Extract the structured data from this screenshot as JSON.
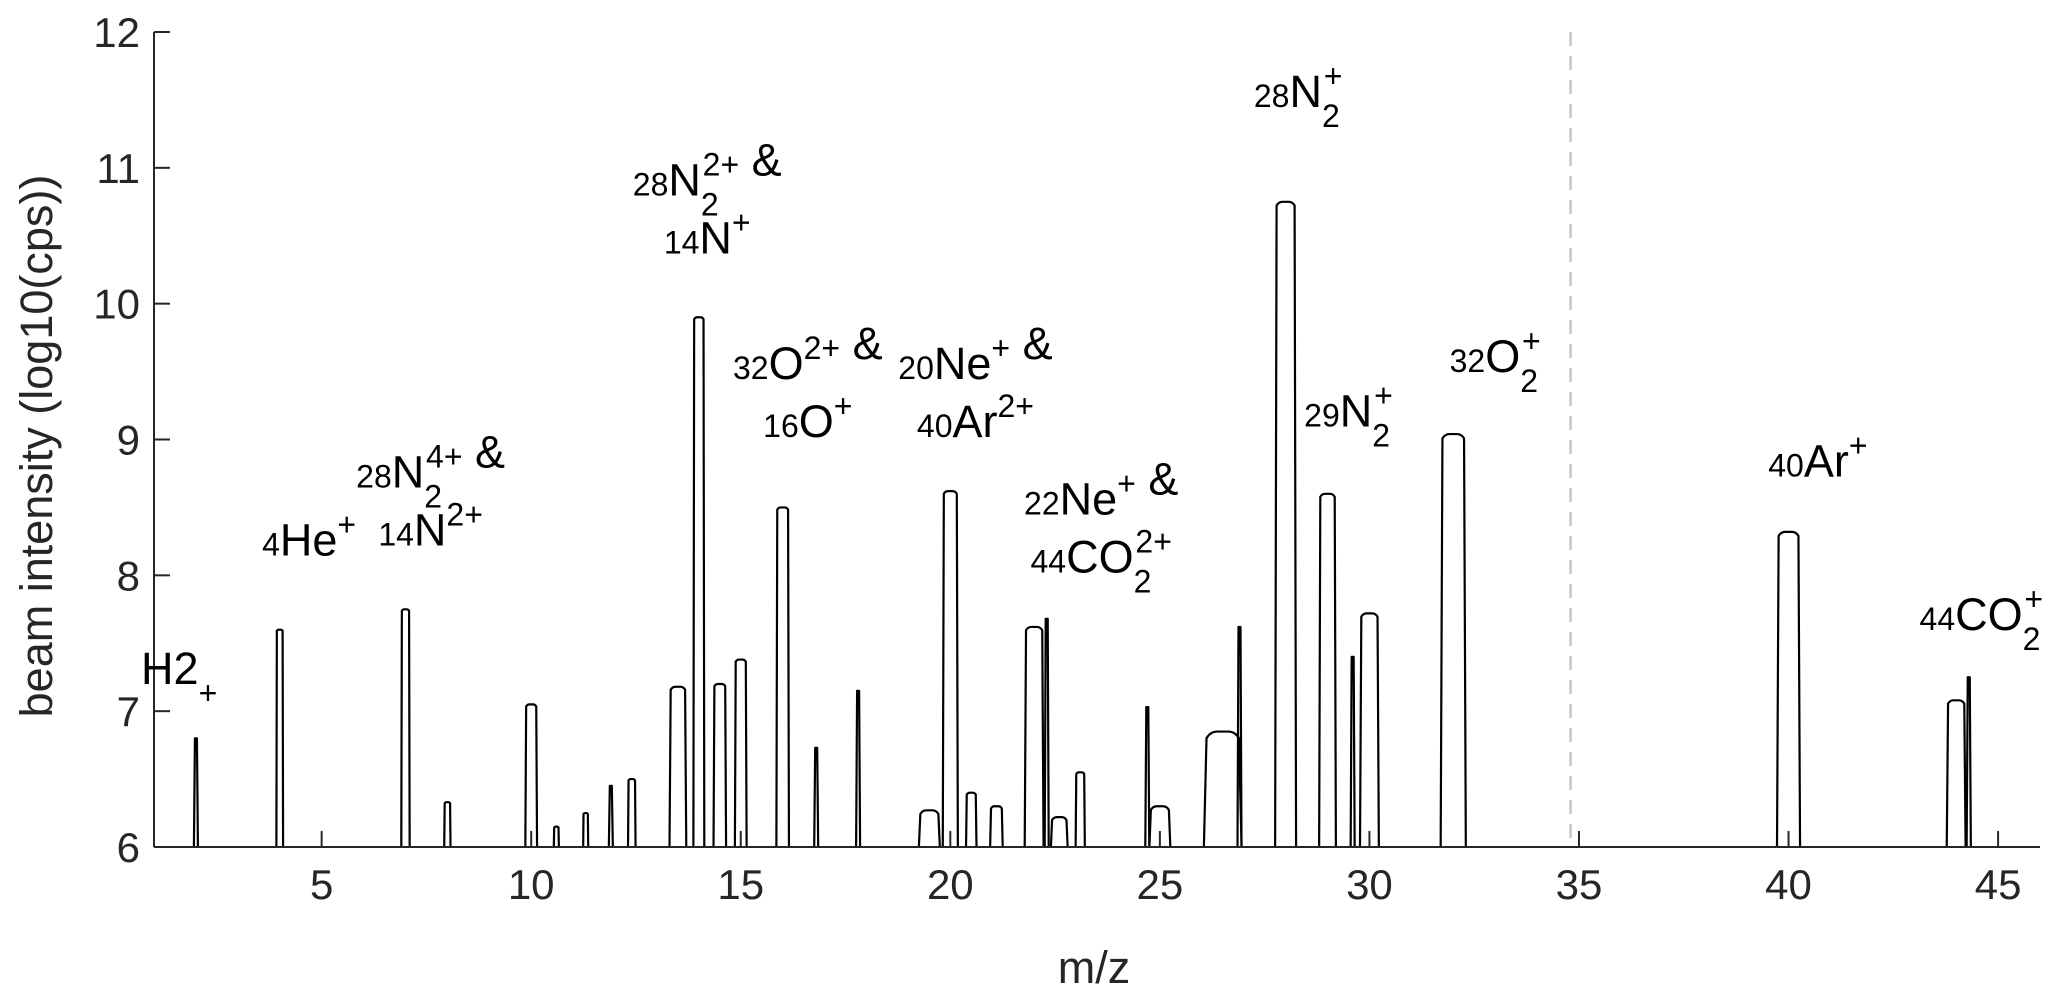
{
  "chart_data": {
    "type": "line",
    "xlabel": "m/z",
    "ylabel": "beam intensity (log10(cps))",
    "xlim": [
      1,
      46
    ],
    "ylim": [
      6,
      12
    ],
    "xticks": [
      5,
      10,
      15,
      20,
      25,
      30,
      35,
      40,
      45
    ],
    "yticks": [
      6,
      7,
      8,
      9,
      10,
      11,
      12
    ],
    "grid": false,
    "reference_line": {
      "x": 34.8,
      "style": "dashed",
      "color": "#c8c8c8"
    },
    "line_color": "#000000",
    "peaks": [
      {
        "x": 2.0,
        "y": 6.8,
        "width": 0.04,
        "shape": "spike"
      },
      {
        "x": 4.0,
        "y": 7.6,
        "width": 0.16,
        "shape": "flat"
      },
      {
        "x": 7.0,
        "y": 7.75,
        "width": 0.2,
        "shape": "flat"
      },
      {
        "x": 8.0,
        "y": 6.33,
        "width": 0.15,
        "shape": "flat"
      },
      {
        "x": 10.0,
        "y": 7.05,
        "width": 0.28,
        "shape": "flat"
      },
      {
        "x": 10.6,
        "y": 6.15,
        "width": 0.12,
        "shape": "flat"
      },
      {
        "x": 11.3,
        "y": 6.25,
        "width": 0.12,
        "shape": "flat"
      },
      {
        "x": 11.9,
        "y": 6.45,
        "width": 0.06,
        "shape": "spike"
      },
      {
        "x": 12.4,
        "y": 6.5,
        "width": 0.18,
        "shape": "flat"
      },
      {
        "x": 13.5,
        "y": 7.18,
        "width": 0.4,
        "shape": "flat"
      },
      {
        "x": 14.0,
        "y": 9.9,
        "width": 0.26,
        "shape": "flat"
      },
      {
        "x": 14.5,
        "y": 7.2,
        "width": 0.3,
        "shape": "flat"
      },
      {
        "x": 15.0,
        "y": 7.38,
        "width": 0.28,
        "shape": "flat"
      },
      {
        "x": 16.0,
        "y": 8.5,
        "width": 0.3,
        "shape": "flat"
      },
      {
        "x": 16.8,
        "y": 6.73,
        "width": 0.04,
        "shape": "spike"
      },
      {
        "x": 17.8,
        "y": 7.15,
        "width": 0.04,
        "shape": "spike"
      },
      {
        "x": 19.5,
        "y": 6.27,
        "width": 0.5,
        "shape": "flat"
      },
      {
        "x": 20.0,
        "y": 8.62,
        "width": 0.36,
        "shape": "flat"
      },
      {
        "x": 20.5,
        "y": 6.4,
        "width": 0.25,
        "shape": "flat"
      },
      {
        "x": 21.1,
        "y": 6.3,
        "width": 0.3,
        "shape": "flat"
      },
      {
        "x": 22.0,
        "y": 7.62,
        "width": 0.45,
        "shape": "flat"
      },
      {
        "x": 22.3,
        "y": 7.68,
        "width": 0.06,
        "shape": "spike"
      },
      {
        "x": 22.6,
        "y": 6.22,
        "width": 0.4,
        "shape": "flat"
      },
      {
        "x": 23.1,
        "y": 6.55,
        "width": 0.22,
        "shape": "flat"
      },
      {
        "x": 24.7,
        "y": 7.03,
        "width": 0.05,
        "shape": "spike"
      },
      {
        "x": 25.0,
        "y": 6.3,
        "width": 0.5,
        "shape": "flat"
      },
      {
        "x": 26.5,
        "y": 6.85,
        "width": 0.9,
        "shape": "flat"
      },
      {
        "x": 26.9,
        "y": 7.62,
        "width": 0.05,
        "shape": "spike"
      },
      {
        "x": 28.0,
        "y": 10.75,
        "width": 0.5,
        "shape": "flat"
      },
      {
        "x": 29.0,
        "y": 8.6,
        "width": 0.4,
        "shape": "flat"
      },
      {
        "x": 29.6,
        "y": 7.4,
        "width": 0.06,
        "shape": "spike"
      },
      {
        "x": 30.0,
        "y": 7.72,
        "width": 0.45,
        "shape": "flat"
      },
      {
        "x": 32.0,
        "y": 9.04,
        "width": 0.6,
        "shape": "flat"
      },
      {
        "x": 40.0,
        "y": 8.32,
        "width": 0.55,
        "shape": "flat"
      },
      {
        "x": 44.0,
        "y": 7.08,
        "width": 0.45,
        "shape": "flat"
      },
      {
        "x": 44.3,
        "y": 7.25,
        "width": 0.1,
        "shape": "spike"
      }
    ],
    "annotations": [
      {
        "x": 1.6,
        "y": 7.2,
        "lines": [
          [
            {
              "t": "H"
            },
            {
              "t": "2",
              "sub": "+"
            }
          ]
        ]
      },
      {
        "x": 4.7,
        "y": 8.0,
        "lines": [
          [
            {
              "sup": "4"
            },
            {
              "t": "He"
            },
            {
              "sup": "+"
            }
          ]
        ]
      },
      {
        "x": 7.6,
        "y": 8.5,
        "lines": [
          [
            {
              "sup": "28"
            },
            {
              "t": "N"
            },
            {
              "sup": "4+",
              "sub": "2"
            },
            {
              "t": " &"
            }
          ],
          [
            {
              "sup": "14"
            },
            {
              "t": "N"
            },
            {
              "sup": "2+"
            }
          ]
        ]
      },
      {
        "x": 14.2,
        "y": 10.65,
        "lines": [
          [
            {
              "sup": "28"
            },
            {
              "t": "N"
            },
            {
              "sup": "2+",
              "sub": "2"
            },
            {
              "t": " &"
            }
          ],
          [
            {
              "sup": "14"
            },
            {
              "t": "N"
            },
            {
              "sup": "+"
            }
          ]
        ]
      },
      {
        "x": 16.6,
        "y": 9.3,
        "lines": [
          [
            {
              "sup": "32"
            },
            {
              "t": "O"
            },
            {
              "sup": "2+"
            },
            {
              "t": " &"
            }
          ],
          [
            {
              "sup": "16"
            },
            {
              "t": "O"
            },
            {
              "sup": "+"
            }
          ]
        ]
      },
      {
        "x": 20.6,
        "y": 9.3,
        "lines": [
          [
            {
              "sup": "20"
            },
            {
              "t": "Ne"
            },
            {
              "sup": "+"
            },
            {
              "t": " &"
            }
          ],
          [
            {
              "sup": "40"
            },
            {
              "t": "Ar"
            },
            {
              "sup": "2+"
            }
          ]
        ]
      },
      {
        "x": 23.6,
        "y": 8.3,
        "lines": [
          [
            {
              "sup": "22"
            },
            {
              "t": "Ne"
            },
            {
              "sup": "+"
            },
            {
              "t": " &"
            }
          ],
          [
            {
              "sup": "44"
            },
            {
              "t": "CO"
            },
            {
              "sup": "2+",
              "sub": "2"
            }
          ]
        ]
      },
      {
        "x": 28.3,
        "y": 11.3,
        "lines": [
          [
            {
              "sup": "28"
            },
            {
              "t": "N"
            },
            {
              "sup": "+",
              "sub": "2"
            }
          ]
        ]
      },
      {
        "x": 29.5,
        "y": 8.95,
        "lines": [
          [
            {
              "sup": "29"
            },
            {
              "t": "N"
            },
            {
              "sup": "+",
              "sub": "2"
            }
          ]
        ]
      },
      {
        "x": 33.0,
        "y": 9.35,
        "lines": [
          [
            {
              "sup": "32"
            },
            {
              "t": "O"
            },
            {
              "sup": "+",
              "sub": "2"
            }
          ]
        ]
      },
      {
        "x": 40.7,
        "y": 8.58,
        "lines": [
          [
            {
              "sup": "40"
            },
            {
              "t": "Ar"
            },
            {
              "sup": "+"
            }
          ]
        ]
      },
      {
        "x": 44.6,
        "y": 7.45,
        "lines": [
          [
            {
              "sup": "44"
            },
            {
              "t": "CO"
            },
            {
              "sup": "+",
              "sub": "2"
            }
          ]
        ]
      }
    ]
  }
}
